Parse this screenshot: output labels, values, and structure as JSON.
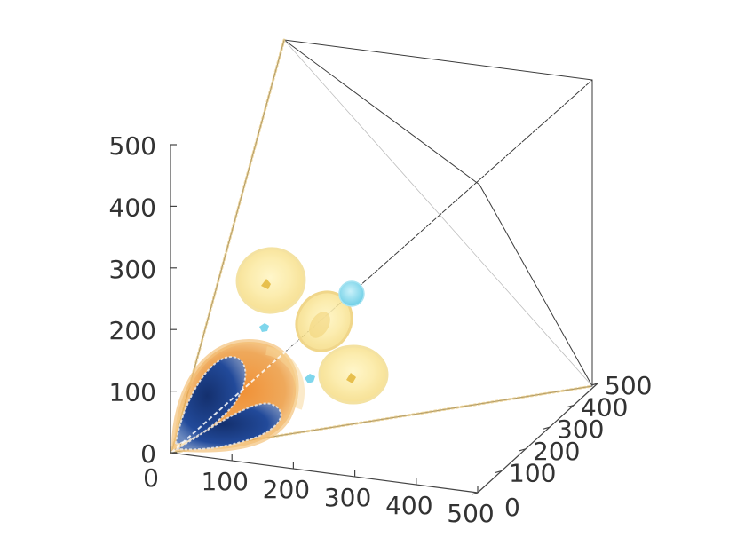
{
  "chart_data": {
    "type": "3d-isosurface",
    "title": "",
    "xlabel": "",
    "ylabel": "",
    "zlabel": "",
    "xlim": [
      0,
      500
    ],
    "ylim": [
      0,
      500
    ],
    "zlim": [
      0,
      500
    ],
    "grid": false,
    "bounding_box": "tetrahedron",
    "x_ticks": [
      "0",
      "100",
      "200",
      "300",
      "400",
      "500"
    ],
    "y_ticks": [
      "0",
      "100",
      "200",
      "300",
      "400",
      "500"
    ],
    "z_ticks": [
      "0",
      "100",
      "200",
      "300",
      "400",
      "500"
    ],
    "isosurfaces": [
      {
        "kind": "negative-core",
        "color": "#1f3f8f",
        "center": [
          80,
          0,
          130
        ]
      },
      {
        "kind": "negative-core",
        "color": "#1f3f8f",
        "center": [
          140,
          0,
          70
        ]
      },
      {
        "kind": "negative-shell",
        "color": "#e0852e",
        "center": [
          110,
          0,
          100
        ]
      },
      {
        "kind": "positive-lobe",
        "color": "#f5df7a",
        "center": [
          200,
          0,
          340
        ]
      },
      {
        "kind": "positive-lobe",
        "color": "#f5df7a",
        "center": [
          270,
          0,
          250
        ]
      },
      {
        "kind": "positive-lobe",
        "color": "#f5df7a",
        "center": [
          360,
          0,
          190
        ]
      },
      {
        "kind": "small-blob",
        "color": "#7fd6ec",
        "center": [
          360,
          0,
          320
        ]
      },
      {
        "kind": "small-blob",
        "color": "#7fd6ec",
        "center": [
          170,
          0,
          230
        ]
      },
      {
        "kind": "small-blob",
        "color": "#7fd6ec",
        "center": [
          260,
          0,
          150
        ]
      }
    ]
  }
}
